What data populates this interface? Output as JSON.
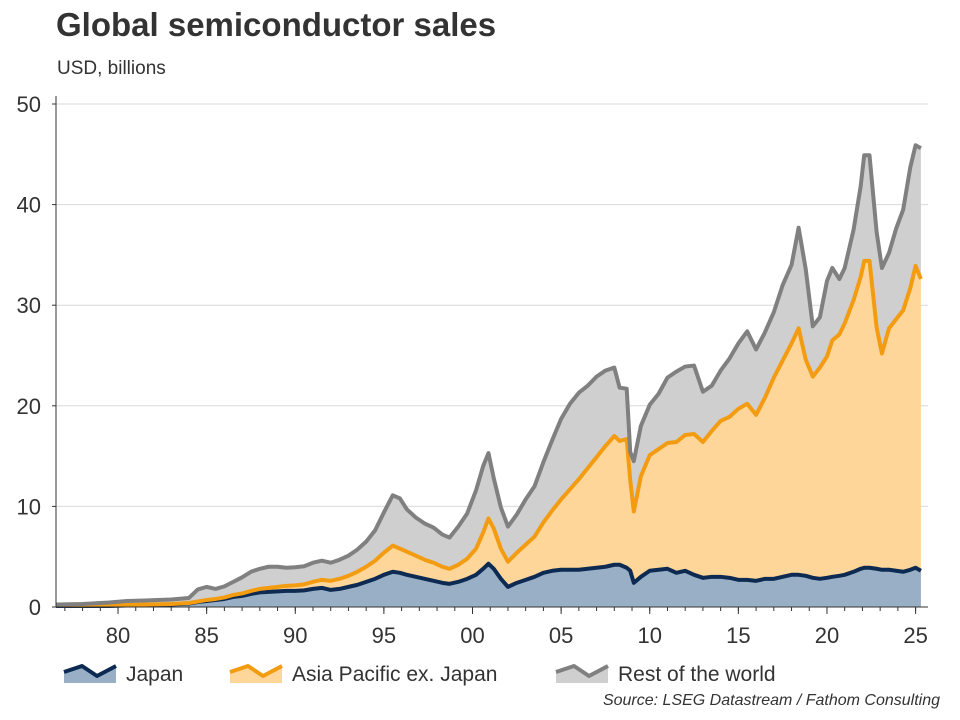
{
  "chart_data": {
    "type": "area",
    "stacked": true,
    "title": "Global semiconductor sales",
    "subtitle": "USD, billions",
    "source": "Source: LSEG Datastream / Fathom Consulting",
    "ylim": [
      0,
      50
    ],
    "xlim": [
      1976.5,
      2025.7
    ],
    "y_ticks": [
      0,
      10,
      20,
      30,
      40,
      50
    ],
    "x_ticks": [
      {
        "value": 1980,
        "label": "80"
      },
      {
        "value": 1985,
        "label": "85"
      },
      {
        "value": 1990,
        "label": "90"
      },
      {
        "value": 1995,
        "label": "95"
      },
      {
        "value": 2000,
        "label": "00"
      },
      {
        "value": 2005,
        "label": "05"
      },
      {
        "value": 2010,
        "label": "10"
      },
      {
        "value": 2015,
        "label": "15"
      },
      {
        "value": 2020,
        "label": "20"
      },
      {
        "value": 2025,
        "label": "25"
      }
    ],
    "gridlines": true,
    "legend_position": "bottom",
    "x": [
      1976.5,
      1978,
      1979.5,
      1980.5,
      1981.5,
      1983,
      1984,
      1984.5,
      1985,
      1985.5,
      1986,
      1986.5,
      1987,
      1987.5,
      1988,
      1988.5,
      1989,
      1989.5,
      1990,
      1990.5,
      1991,
      1991.5,
      1992,
      1992.5,
      1993,
      1993.5,
      1994,
      1994.5,
      1995,
      1995.5,
      1995.9,
      1996.3,
      1996.8,
      1997.3,
      1997.8,
      1998.3,
      1998.7,
      1999.2,
      1999.7,
      2000.2,
      2000.6,
      2000.9,
      2001.2,
      2001.6,
      2002,
      2002.5,
      2003,
      2003.5,
      2004,
      2004.5,
      2005,
      2005.5,
      2006,
      2006.5,
      2007,
      2007.5,
      2008,
      2008.3,
      2008.7,
      2008.9,
      2009.1,
      2009.5,
      2010,
      2010.5,
      2011,
      2011.5,
      2012,
      2012.5,
      2013,
      2013.5,
      2014,
      2014.5,
      2015,
      2015.5,
      2016,
      2016.5,
      2017,
      2017.5,
      2018,
      2018.4,
      2018.8,
      2019.2,
      2019.6,
      2020,
      2020.3,
      2020.7,
      2021,
      2021.5,
      2021.9,
      2022.1,
      2022.4,
      2022.8,
      2023.1,
      2023.5,
      2023.9,
      2024.3,
      2024.7,
      2025,
      2025.3
    ],
    "series": [
      {
        "name": "Japan",
        "color": "#0d2b52",
        "fill": "#99afc6",
        "values": [
          0.1,
          0.1,
          0.1,
          0.15,
          0.2,
          0.25,
          0.35,
          0.5,
          0.6,
          0.7,
          0.8,
          1.0,
          1.1,
          1.3,
          1.45,
          1.5,
          1.55,
          1.6,
          1.6,
          1.65,
          1.8,
          1.9,
          1.7,
          1.8,
          2.0,
          2.2,
          2.5,
          2.8,
          3.2,
          3.5,
          3.4,
          3.2,
          3.0,
          2.8,
          2.6,
          2.4,
          2.3,
          2.5,
          2.8,
          3.2,
          3.8,
          4.3,
          3.8,
          2.8,
          2.0,
          2.4,
          2.7,
          3.0,
          3.4,
          3.6,
          3.7,
          3.7,
          3.7,
          3.8,
          3.9,
          4.0,
          4.2,
          4.2,
          3.9,
          3.6,
          2.4,
          3.0,
          3.6,
          3.7,
          3.8,
          3.4,
          3.6,
          3.2,
          2.9,
          3.0,
          3.0,
          2.9,
          2.7,
          2.7,
          2.6,
          2.8,
          2.8,
          3.0,
          3.2,
          3.2,
          3.1,
          2.9,
          2.8,
          2.9,
          3.0,
          3.1,
          3.2,
          3.5,
          3.8,
          3.9,
          3.9,
          3.8,
          3.7,
          3.7,
          3.6,
          3.5,
          3.7,
          3.9,
          3.6
        ]
      },
      {
        "name": "Asia Pacific ex. Japan",
        "color": "#f39c12",
        "fill": "#ffd699",
        "values": [
          0.05,
          0.05,
          0.05,
          0.05,
          0.05,
          0.05,
          0.05,
          0.05,
          0.1,
          0.1,
          0.15,
          0.2,
          0.25,
          0.3,
          0.35,
          0.4,
          0.45,
          0.5,
          0.55,
          0.6,
          0.7,
          0.8,
          0.9,
          1.0,
          1.1,
          1.3,
          1.5,
          1.8,
          2.2,
          2.6,
          2.4,
          2.3,
          2.1,
          1.9,
          1.8,
          1.6,
          1.5,
          1.7,
          2.0,
          2.6,
          3.6,
          4.5,
          4.0,
          3.0,
          2.5,
          3.0,
          3.5,
          4.0,
          5.0,
          6.0,
          7.0,
          8.0,
          9.0,
          10.0,
          11.0,
          12.0,
          12.8,
          12.3,
          12.8,
          9.0,
          7.1,
          10.0,
          11.5,
          12.0,
          12.5,
          13.0,
          13.5,
          14.0,
          13.5,
          14.5,
          15.5,
          16.0,
          17.0,
          17.5,
          16.5,
          18.0,
          20.0,
          21.5,
          23.0,
          24.5,
          21.5,
          20.0,
          21.0,
          22.0,
          23.5,
          24.0,
          25.0,
          27.0,
          29.0,
          30.5,
          30.5,
          24.0,
          21.5,
          24.0,
          25.0,
          26.0,
          28.0,
          30.0,
          29.0
        ]
      },
      {
        "name": "Rest of the world",
        "color": "#808080",
        "fill": "#cfcfcf",
        "values": [
          0.1,
          0.15,
          0.3,
          0.4,
          0.4,
          0.45,
          0.5,
          1.2,
          1.3,
          1.0,
          1.1,
          1.3,
          1.6,
          1.9,
          2.0,
          2.1,
          2.0,
          1.8,
          1.8,
          1.8,
          1.9,
          1.9,
          1.8,
          1.9,
          2.0,
          2.2,
          2.5,
          3.0,
          4.0,
          5.0,
          5.0,
          4.2,
          3.8,
          3.6,
          3.5,
          3.2,
          3.1,
          3.8,
          4.5,
          5.8,
          6.6,
          6.5,
          5.0,
          4.1,
          3.5,
          3.8,
          4.5,
          5.0,
          6.0,
          7.0,
          8.0,
          8.5,
          8.6,
          8.2,
          8.0,
          7.5,
          6.8,
          5.3,
          5.0,
          2.8,
          5.0,
          5.0,
          5.0,
          5.5,
          6.5,
          7.0,
          6.8,
          6.8,
          5.0,
          4.5,
          5.0,
          5.8,
          6.5,
          7.2,
          6.5,
          6.5,
          6.5,
          7.5,
          7.8,
          10.0,
          9.0,
          5.0,
          5.0,
          7.5,
          7.2,
          5.5,
          5.5,
          7.0,
          9.0,
          10.5,
          10.5,
          9.5,
          8.5,
          7.5,
          9.0,
          10.0,
          12.0,
          12.0,
          13.0
        ]
      }
    ]
  }
}
